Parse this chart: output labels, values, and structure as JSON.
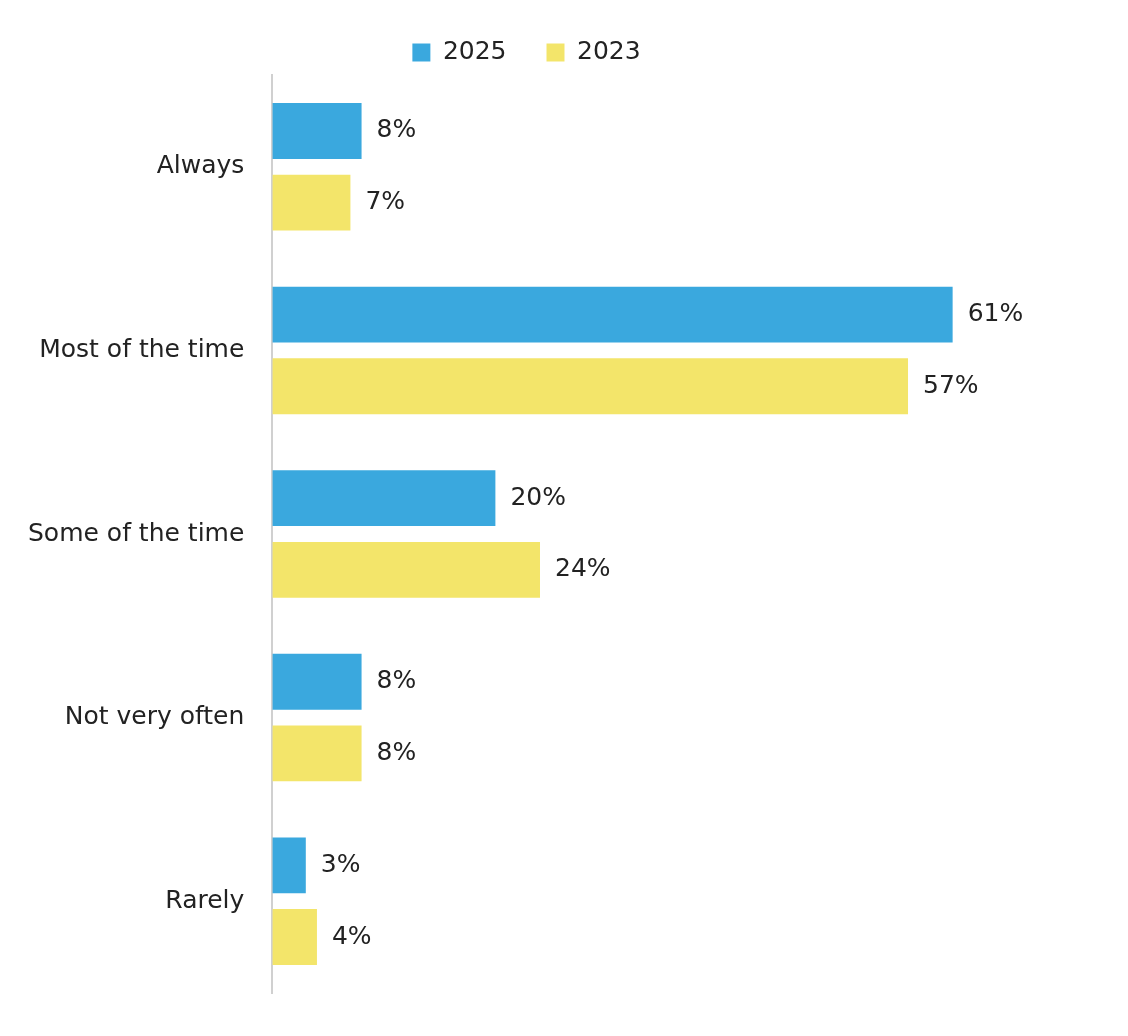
{
  "chart_data": {
    "type": "bar",
    "orientation": "horizontal",
    "categories": [
      "Always",
      "Most of the time",
      "Some of the time",
      "Not very often",
      "Rarely"
    ],
    "series": [
      {
        "name": "2025",
        "color": "#3aa8de",
        "values": [
          8,
          61,
          20,
          8,
          3
        ],
        "value_labels": [
          "8%",
          "61%",
          "20%",
          "8%",
          "3%"
        ]
      },
      {
        "name": "2023",
        "color": "#f3e56a",
        "values": [
          7,
          57,
          24,
          8,
          4
        ],
        "value_labels": [
          "7%",
          "57%",
          "24%",
          "8%",
          "4%"
        ]
      }
    ],
    "legend": "top",
    "tick_labels": "y"
  }
}
